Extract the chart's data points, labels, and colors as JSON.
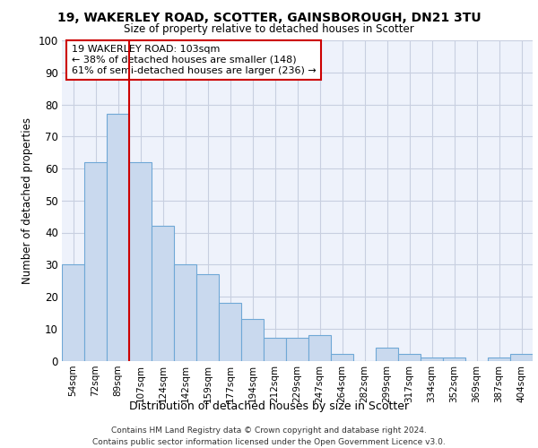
{
  "title1": "19, WAKERLEY ROAD, SCOTTER, GAINSBOROUGH, DN21 3TU",
  "title2": "Size of property relative to detached houses in Scotter",
  "xlabel": "Distribution of detached houses by size in Scotter",
  "ylabel": "Number of detached properties",
  "categories": [
    "54sqm",
    "72sqm",
    "89sqm",
    "107sqm",
    "124sqm",
    "142sqm",
    "159sqm",
    "177sqm",
    "194sqm",
    "212sqm",
    "229sqm",
    "247sqm",
    "264sqm",
    "282sqm",
    "299sqm",
    "317sqm",
    "334sqm",
    "352sqm",
    "369sqm",
    "387sqm",
    "404sqm"
  ],
  "values": [
    30,
    62,
    77,
    62,
    42,
    30,
    27,
    18,
    13,
    7,
    7,
    8,
    2,
    0,
    4,
    2,
    1,
    1,
    0,
    1,
    2
  ],
  "bar_color": "#c9d9ee",
  "bar_edge_color": "#6fa8d6",
  "annotation_text_line1": "19 WAKERLEY ROAD: 103sqm",
  "annotation_text_line2": "← 38% of detached houses are smaller (148)",
  "annotation_text_line3": "61% of semi-detached houses are larger (236) →",
  "footnote1": "Contains HM Land Registry data © Crown copyright and database right 2024.",
  "footnote2": "Contains public sector information licensed under the Open Government Licence v3.0.",
  "ylim": [
    0,
    100
  ],
  "yticks": [
    0,
    10,
    20,
    30,
    40,
    50,
    60,
    70,
    80,
    90,
    100
  ],
  "bg_color": "#ffffff",
  "plot_bg_color": "#eef2fb",
  "grid_color": "#c8cfe0",
  "annotation_box_color": "#ffffff",
  "annotation_box_edge": "#cc0000",
  "vline_color": "#cc0000",
  "vline_x_index": 3
}
